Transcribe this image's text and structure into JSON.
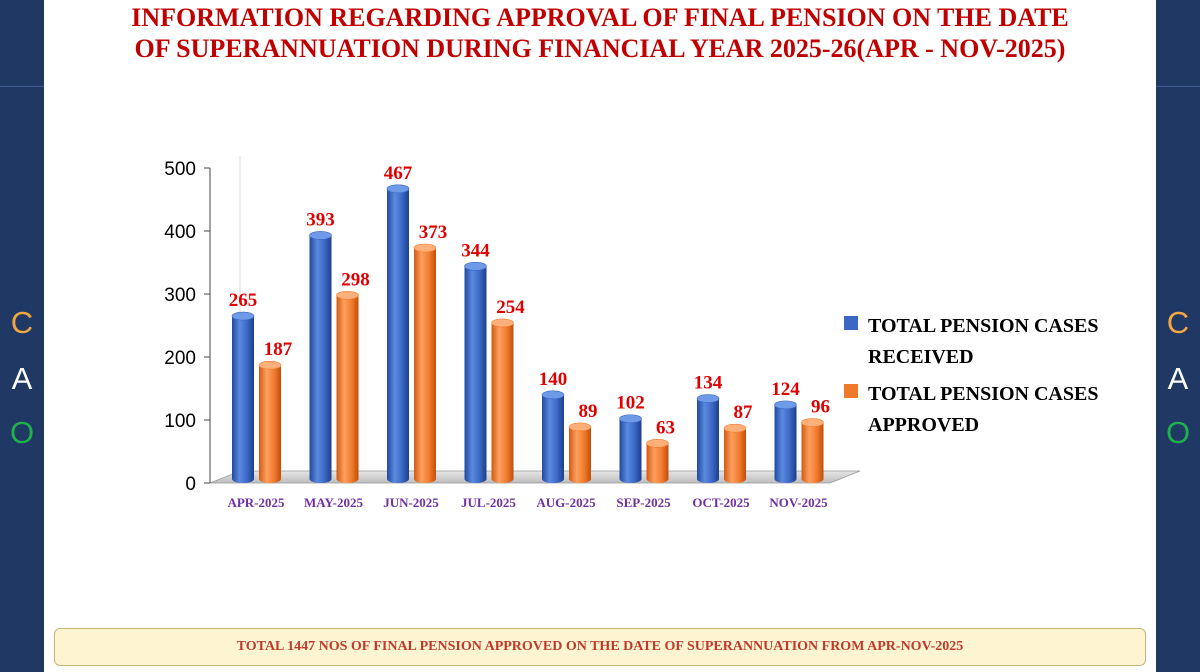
{
  "title_line1": "INFORMATION REGARDING APPROVAL OF FINAL PENSION ON THE DATE",
  "title_line2": "OF SUPERANNUATION  DURING FINANCIAL YEAR 2025-26(APR - NOV-2025)",
  "footer": "TOTAL 1447 NOS OF FINAL PENSION APPROVED ON THE DATE OF SUPERANNUATION FROM APR-NOV-2025",
  "side_letters": [
    {
      "char": "C",
      "color": "#f4a640"
    },
    {
      "char": "A",
      "color": "#ffffff"
    },
    {
      "char": "O",
      "color": "#21b14b"
    }
  ],
  "chart_data": {
    "type": "bar",
    "categories": [
      "APR-2025",
      "MAY-2025",
      "JUN-2025",
      "JUL-2025",
      "AUG-2025",
      "SEP-2025",
      "OCT-2025",
      "NOV-2025"
    ],
    "series": [
      {
        "name": "TOTAL PENSION CASES RECEIVED",
        "values": [
          265,
          393,
          467,
          344,
          140,
          102,
          134,
          124
        ],
        "color": "#3a67c4"
      },
      {
        "name": "TOTAL PENSION CASES APPROVED",
        "values": [
          187,
          298,
          373,
          254,
          89,
          63,
          87,
          96
        ],
        "color": "#f07a2c"
      }
    ],
    "ylim": [
      0,
      500
    ],
    "yticks": [
      "0",
      "100",
      "200",
      "300",
      "400",
      "500"
    ],
    "legend_lines": [
      [
        "TOTAL PENSION CASES",
        "RECEIVED"
      ],
      [
        "TOTAL PENSION CASES",
        "APPROVED"
      ]
    ],
    "legend_position": "right",
    "data_label_color": "#e00000",
    "category_label_color": "#7030a0"
  }
}
